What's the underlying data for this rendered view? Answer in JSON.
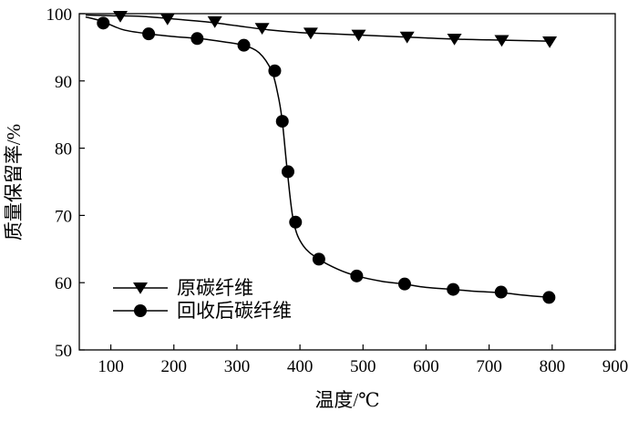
{
  "chart_data": {
    "type": "line",
    "title": "",
    "xlabel": "温度/℃",
    "ylabel": "质量保留率/%",
    "xlim": [
      50,
      900
    ],
    "ylim": [
      50,
      100
    ],
    "xticks": [
      100,
      200,
      300,
      400,
      500,
      600,
      700,
      800,
      900
    ],
    "yticks": [
      50,
      60,
      70,
      80,
      90,
      100
    ],
    "x_tick_labels": [
      "100",
      "200",
      "300",
      "400",
      "500",
      "600",
      "700",
      "800",
      "900"
    ],
    "y_tick_labels": [
      "50",
      "60",
      "70",
      "80",
      "90",
      "100"
    ],
    "grid": false,
    "legend_position": "bottom-left",
    "series": [
      {
        "name": "原碳纤维",
        "marker": "triangle-down",
        "color": "#000000",
        "curve": [
          [
            60,
            99.8
          ],
          [
            100,
            99.7
          ],
          [
            150,
            99.6
          ],
          [
            200,
            99.2
          ],
          [
            250,
            98.8
          ],
          [
            300,
            98.2
          ],
          [
            350,
            97.6
          ],
          [
            400,
            97.2
          ],
          [
            450,
            97.0
          ],
          [
            500,
            96.8
          ],
          [
            550,
            96.6
          ],
          [
            600,
            96.4
          ],
          [
            650,
            96.2
          ],
          [
            700,
            96.1
          ],
          [
            750,
            96.0
          ],
          [
            800,
            95.9
          ]
        ],
        "markers": [
          [
            115,
            99.6
          ],
          [
            190,
            99.2
          ],
          [
            265,
            98.8
          ],
          [
            340,
            97.8
          ],
          [
            417,
            97.1
          ],
          [
            493,
            96.8
          ],
          [
            570,
            96.5
          ],
          [
            645,
            96.2
          ],
          [
            720,
            96.0
          ],
          [
            796,
            95.8
          ]
        ]
      },
      {
        "name": "回收后碳纤维",
        "marker": "circle",
        "color": "#000000",
        "curve": [
          [
            60,
            99.5
          ],
          [
            85,
            98.9
          ],
          [
            120,
            97.6
          ],
          [
            160,
            97.0
          ],
          [
            200,
            96.6
          ],
          [
            240,
            96.3
          ],
          [
            280,
            95.8
          ],
          [
            310,
            95.3
          ],
          [
            335,
            94.2
          ],
          [
            355,
            91.5
          ],
          [
            365,
            88.0
          ],
          [
            372,
            84.0
          ],
          [
            380,
            76.5
          ],
          [
            390,
            69.0
          ],
          [
            405,
            65.5
          ],
          [
            430,
            63.5
          ],
          [
            460,
            62.0
          ],
          [
            490,
            61.0
          ],
          [
            530,
            60.2
          ],
          [
            565,
            59.8
          ],
          [
            600,
            59.3
          ],
          [
            643,
            59.0
          ],
          [
            680,
            58.7
          ],
          [
            720,
            58.5
          ],
          [
            760,
            58.1
          ],
          [
            800,
            57.8
          ]
        ],
        "markers": [
          [
            88,
            98.6
          ],
          [
            160,
            97.0
          ],
          [
            237,
            96.3
          ],
          [
            311,
            95.3
          ],
          [
            360,
            91.5
          ],
          [
            372,
            84.0
          ],
          [
            381,
            76.5
          ],
          [
            393,
            69.0
          ],
          [
            430,
            63.5
          ],
          [
            490,
            61.0
          ],
          [
            566,
            59.8
          ],
          [
            643,
            59.0
          ],
          [
            719,
            58.6
          ],
          [
            795,
            57.8
          ]
        ]
      }
    ]
  }
}
